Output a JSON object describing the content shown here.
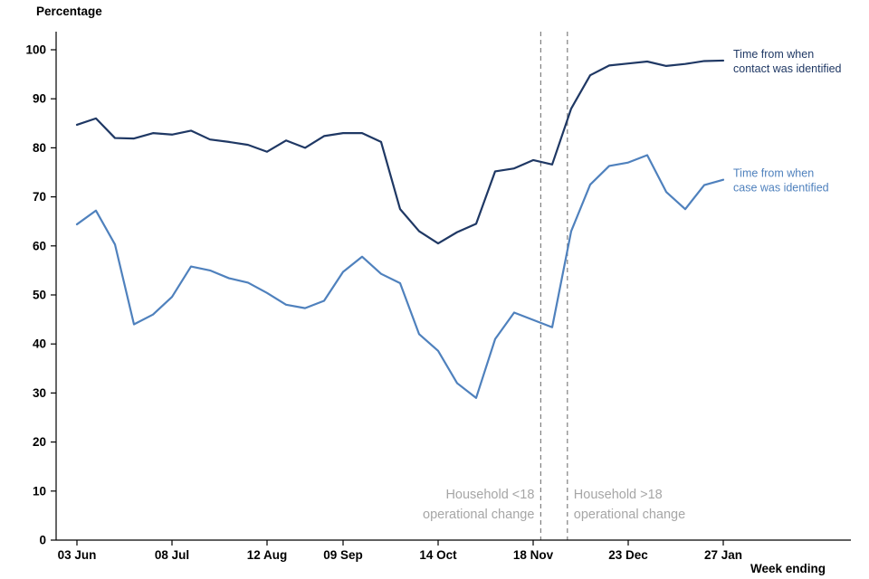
{
  "chart_data": {
    "type": "line",
    "title": "Percentage",
    "xlabel": "Week ending",
    "ylim": [
      0,
      100
    ],
    "grid": false,
    "legend_position": "line-end-labels",
    "y_ticks": [
      0,
      10,
      20,
      30,
      40,
      50,
      60,
      70,
      80,
      90,
      100
    ],
    "n_points": 35,
    "x_tick_labels": [
      {
        "index": 0,
        "label": "03 Jun"
      },
      {
        "index": 5,
        "label": "08 Jul"
      },
      {
        "index": 10,
        "label": "12 Aug"
      },
      {
        "index": 14,
        "label": "09 Sep"
      },
      {
        "index": 19,
        "label": "14 Oct"
      },
      {
        "index": 24,
        "label": "18 Nov"
      },
      {
        "index": 29,
        "label": "23 Dec"
      },
      {
        "index": 34,
        "label": "27 Jan"
      }
    ],
    "series": [
      {
        "id": "contact",
        "label_lines": [
          "Time from when",
          "contact was identified"
        ],
        "color": "#1F3864",
        "values": [
          84.7,
          86.0,
          82.0,
          81.9,
          83.0,
          82.7,
          83.5,
          81.7,
          81.2,
          80.6,
          79.2,
          81.5,
          80.0,
          82.4,
          83.0,
          83.0,
          81.2,
          67.5,
          63.0,
          60.5,
          62.8,
          64.5,
          75.2,
          75.8,
          77.5,
          76.6,
          88.0,
          94.8,
          96.8,
          97.2,
          97.6,
          96.7,
          97.1,
          97.7,
          97.8
        ]
      },
      {
        "id": "case",
        "label_lines": [
          "Time from when",
          "case was identified"
        ],
        "color": "#4F81BD",
        "values": [
          64.4,
          67.2,
          60.3,
          44.0,
          46.0,
          49.6,
          55.8,
          55.0,
          53.4,
          52.5,
          50.4,
          48.0,
          47.3,
          48.8,
          54.7,
          57.8,
          54.3,
          52.4,
          42.0,
          38.6,
          32.0,
          29.0,
          41.0,
          46.4,
          44.9,
          43.4,
          63.0,
          72.5,
          76.3,
          77.0,
          78.5,
          71.0,
          67.5,
          72.4,
          73.5
        ]
      }
    ],
    "event_lines": [
      {
        "x_index": 24.4,
        "label_lines": [
          "Household <18",
          "operational change"
        ],
        "label_side": "left"
      },
      {
        "x_index": 25.8,
        "label_lines": [
          "Household >18",
          "operational change"
        ],
        "label_side": "right"
      }
    ],
    "colors": {
      "axis": "#000000",
      "event_line": "#808080",
      "annotation_text": "#A6A6A6"
    }
  }
}
